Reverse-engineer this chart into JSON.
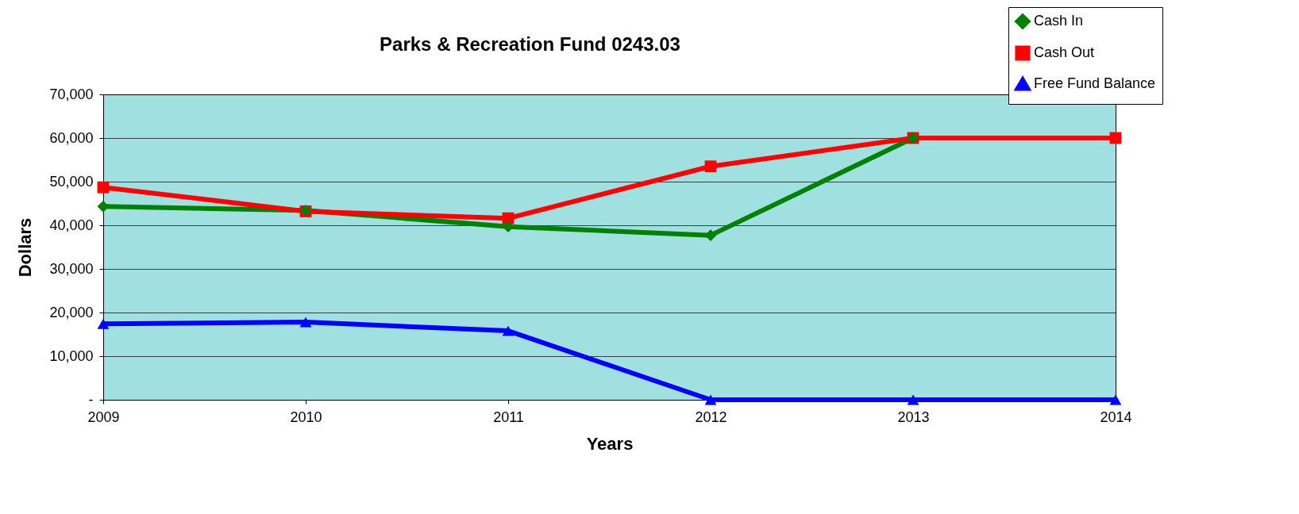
{
  "chart_data": {
    "type": "line",
    "title": "Parks & Recreation Fund 0243.03",
    "xlabel": "Years",
    "ylabel": "Dollars",
    "x": [
      2009,
      2010,
      2011,
      2012,
      2013,
      2014
    ],
    "xlim": [
      2009,
      2014
    ],
    "xticks": [
      2009,
      2010,
      2011,
      2012,
      2013,
      2014
    ],
    "ylim": [
      0,
      70000
    ],
    "yticks": [
      {
        "value": 0,
        "label": "-"
      },
      {
        "value": 10000,
        "label": "10,000"
      },
      {
        "value": 20000,
        "label": "20,000"
      },
      {
        "value": 30000,
        "label": "30,000"
      },
      {
        "value": 40000,
        "label": "40,000"
      },
      {
        "value": 50000,
        "label": "50,000"
      },
      {
        "value": 60000,
        "label": "60,000"
      },
      {
        "value": 70000,
        "label": "70,000"
      }
    ],
    "grid": "y",
    "legend": "top right",
    "series": [
      {
        "name": "Cash In",
        "color": "#008000",
        "marker": "diamond",
        "values": [
          44300,
          43400,
          39700,
          37700,
          60000,
          null
        ]
      },
      {
        "name": "Cash Out",
        "color": "#ff0000",
        "marker": "square",
        "values": [
          48700,
          43200,
          41600,
          53500,
          60000,
          60000
        ]
      },
      {
        "name": "Free Fund Balance",
        "color": "#0000ff",
        "marker": "triangle",
        "values": [
          17400,
          17800,
          15800,
          0,
          0,
          0
        ]
      }
    ]
  }
}
